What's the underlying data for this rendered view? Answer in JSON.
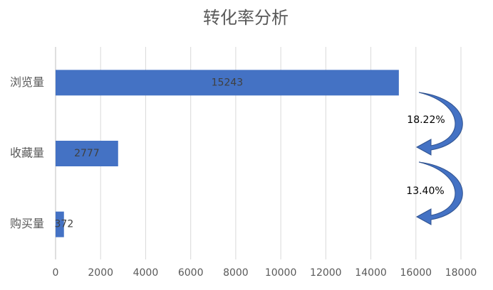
{
  "chart_data": {
    "type": "hbar",
    "title": "转化率分析",
    "categories": [
      "浏览量",
      "收藏量",
      "购买量"
    ],
    "values": [
      15243,
      2777,
      372
    ],
    "color": "#4472c4",
    "xlim": [
      0,
      18000
    ],
    "xticks": [
      0,
      2000,
      4000,
      6000,
      8000,
      10000,
      12000,
      14000,
      16000,
      18000
    ],
    "grid": true,
    "annotations": [
      "18.22%",
      "13.40%"
    ]
  }
}
